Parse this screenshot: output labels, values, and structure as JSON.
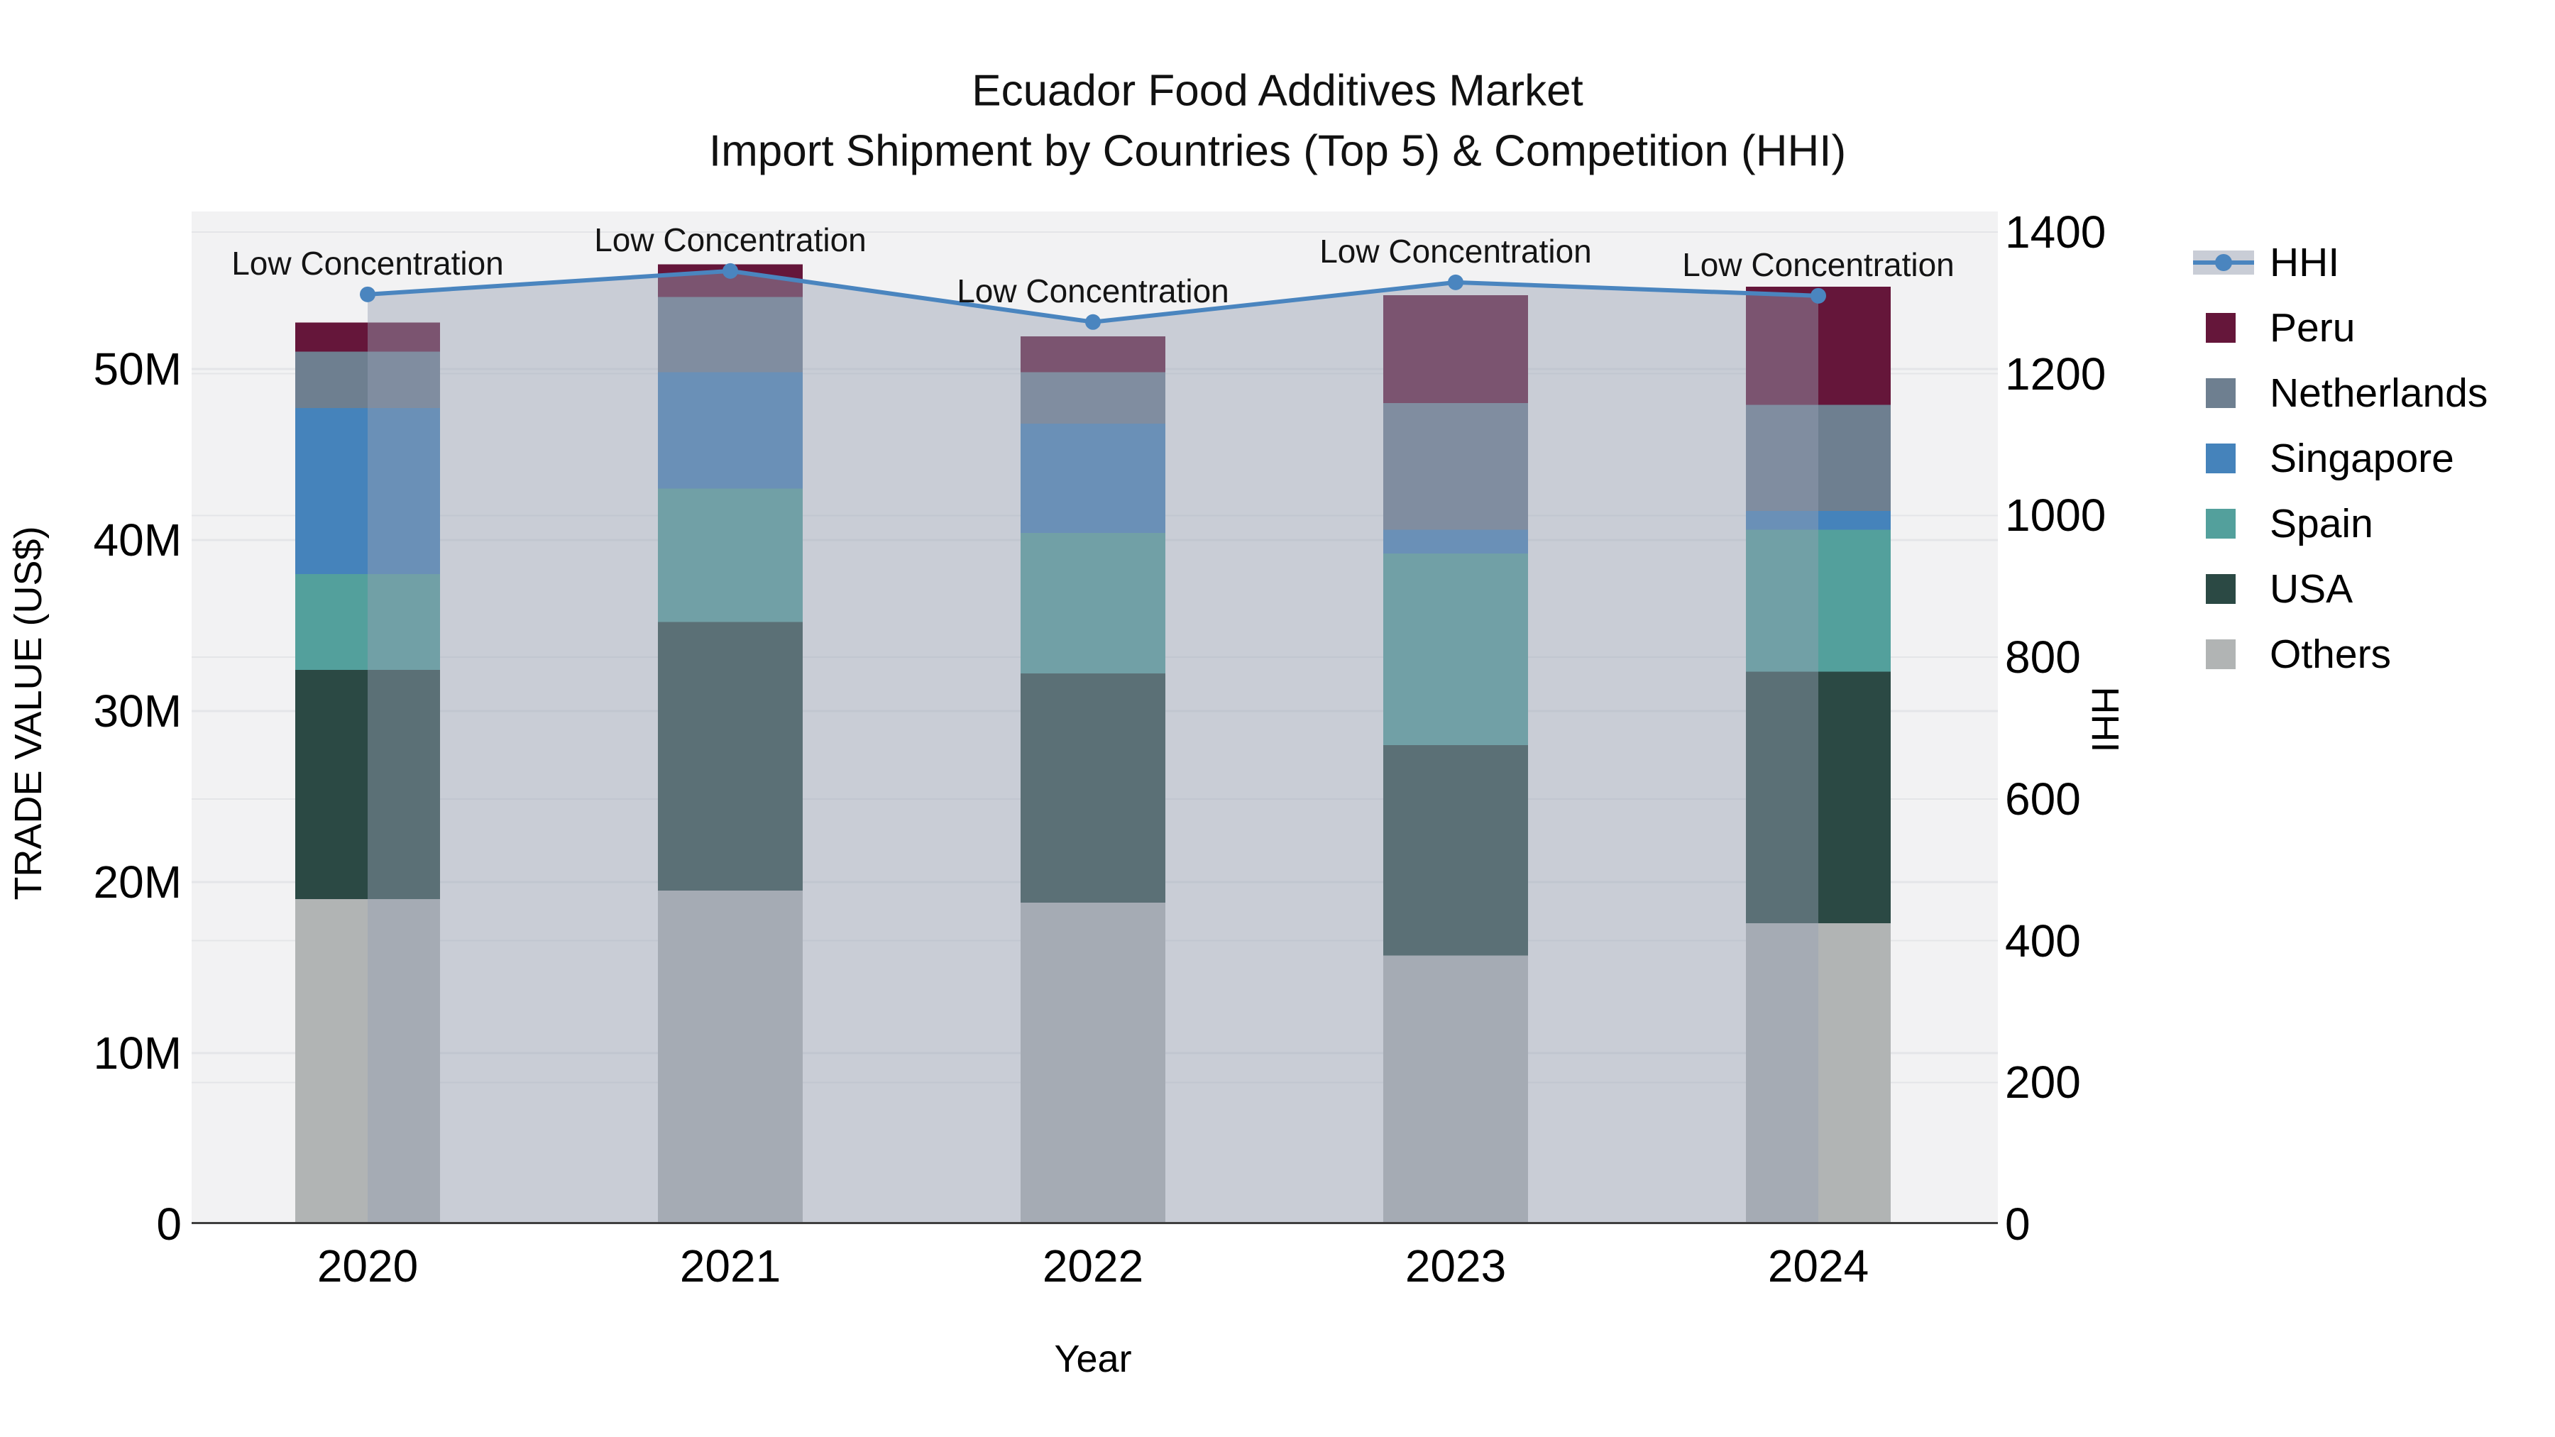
{
  "title": {
    "line1": "Ecuador Food Additives Market",
    "line2": "Import Shipment by Countries (Top 5) & Competition (HHI)"
  },
  "axes": {
    "x_title": "Year",
    "y_left_title": "TRADE VALUE (US$)",
    "y_right_title": "HHI",
    "x_ticks": [
      "2020",
      "2021",
      "2022",
      "2023",
      "2024"
    ],
    "y_left_ticks": [
      {
        "label": "0",
        "value": 0
      },
      {
        "label": "10M",
        "value": 10
      },
      {
        "label": "20M",
        "value": 20
      },
      {
        "label": "30M",
        "value": 30
      },
      {
        "label": "40M",
        "value": 40
      },
      {
        "label": "50M",
        "value": 50
      }
    ],
    "y_right_ticks": [
      {
        "label": "0",
        "value": 0
      },
      {
        "label": "200",
        "value": 200
      },
      {
        "label": "400",
        "value": 400
      },
      {
        "label": "600",
        "value": 600
      },
      {
        "label": "800",
        "value": 800
      },
      {
        "label": "1000",
        "value": 1000
      },
      {
        "label": "1200",
        "value": 1200
      },
      {
        "label": "1400",
        "value": 1400
      }
    ]
  },
  "chart_data": {
    "type": "bar",
    "subtype": "stacked-bars-with-hhi-line-and-area",
    "categories": [
      "2020",
      "2021",
      "2022",
      "2023",
      "2024"
    ],
    "value_unit": "million US$ (trade value, left axis)",
    "series": [
      {
        "name": "Others",
        "color": "#b1b4b4",
        "values": [
          19.0,
          19.5,
          18.8,
          15.7,
          17.6
        ]
      },
      {
        "name": "USA",
        "color": "#2b4944",
        "values": [
          13.4,
          15.7,
          13.4,
          12.3,
          14.7
        ]
      },
      {
        "name": "Spain",
        "color": "#53a09c",
        "values": [
          5.6,
          7.8,
          8.2,
          11.2,
          8.3
        ]
      },
      {
        "name": "Singapore",
        "color": "#4583bb",
        "values": [
          9.7,
          6.8,
          6.4,
          1.4,
          1.1
        ]
      },
      {
        "name": "Netherlands",
        "color": "#6e7f90",
        "values": [
          3.3,
          4.4,
          3.0,
          7.4,
          6.2
        ]
      },
      {
        "name": "Peru",
        "color": "#65163a",
        "values": [
          1.7,
          1.9,
          2.1,
          6.3,
          6.9
        ]
      }
    ],
    "stack_order_note": "series listed bottom-to-top",
    "totals": [
      52.7,
      56.1,
      51.9,
      54.3,
      54.8
    ],
    "hhi_line": {
      "name": "HHI",
      "values": [
        1312,
        1345,
        1273,
        1329,
        1310
      ],
      "color": "#4a85bf",
      "area_color": "rgba(150,160,180,0.45)",
      "marker": "circle"
    },
    "annotations": [
      {
        "text": "Low Concentration",
        "category": "2020"
      },
      {
        "text": "Low Concentration",
        "category": "2021"
      },
      {
        "text": "Low Concentration",
        "category": "2022"
      },
      {
        "text": "Low Concentration",
        "category": "2023"
      },
      {
        "text": "Low Concentration",
        "category": "2024"
      }
    ],
    "ylim_left": [
      0,
      59.2
    ],
    "ylim_right": [
      0,
      1429
    ],
    "grid": "horizontal",
    "legend_position": "right",
    "style": {
      "plot_bg": "#f2f2f3",
      "grid_color": "#e4e5e8",
      "spine_color": "#3f3f3f",
      "annotation_color": "#141414",
      "legend_band_color": "#c9cdd6"
    }
  },
  "legend": {
    "items": [
      {
        "label": "HHI",
        "type": "line",
        "color": "#4a85bf"
      },
      {
        "label": "Peru",
        "type": "patch",
        "color": "#65163a"
      },
      {
        "label": "Netherlands",
        "type": "patch",
        "color": "#6e7f90"
      },
      {
        "label": "Singapore",
        "type": "patch",
        "color": "#4583bb"
      },
      {
        "label": "Spain",
        "type": "patch",
        "color": "#53a09c"
      },
      {
        "label": "USA",
        "type": "patch",
        "color": "#2b4944"
      },
      {
        "label": "Others",
        "type": "patch",
        "color": "#b1b4b4"
      }
    ]
  }
}
